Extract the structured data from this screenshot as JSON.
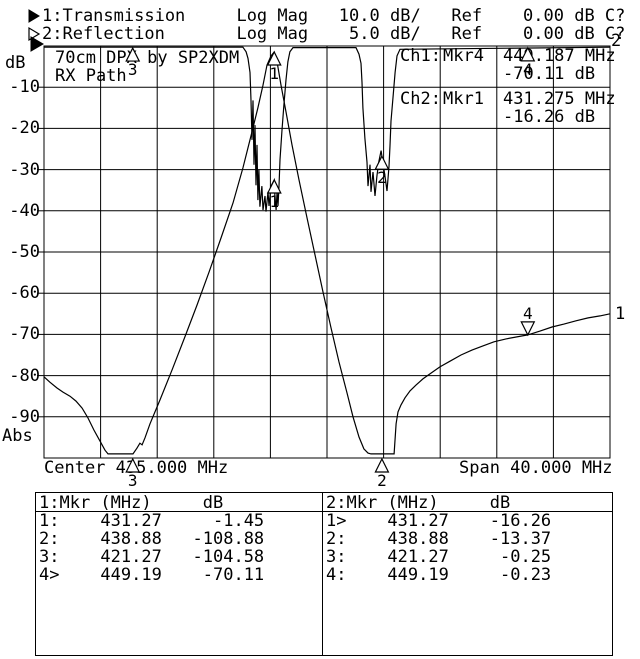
{
  "header": {
    "line1": "1:Transmission     Log Mag   10.0 dB/   Ref    0.00 dB C?",
    "line2": "2:Reflection       Log Mag    5.0 dB/   Ref    0.00 dB C?"
  },
  "y_axis": {
    "unit_label": "dB",
    "bottom_label": "Abs",
    "tick_labels": [
      "-10",
      "-20",
      "-30",
      "-40",
      "-50",
      "-60",
      "-70",
      "-80",
      "-90"
    ]
  },
  "x_axis": {
    "center_label": "Center 435.000 MHz",
    "span_label": "Span 40.000 MHz"
  },
  "annotation": {
    "line1": "70cm DPX by SP2XDM",
    "line2": "RX Path"
  },
  "readout": {
    "ch1_label": "Ch1:",
    "ch1_marker": "Mkr4",
    "ch1_freq": "449.187 MHz",
    "ch1_level": "-70.11 dB",
    "ch2_label": "Ch2:",
    "ch2_marker": "Mkr1",
    "ch2_freq": "431.275 MHz",
    "ch2_level": "-16.26 dB"
  },
  "trace_labels": {
    "trace1": "1",
    "trace2": "2"
  },
  "marker_tables": [
    {
      "header": "1:Mkr (MHz)     dB",
      "rows": [
        "1:    431.27     -1.45",
        "2:    438.88   -108.88",
        "3:    421.27   -104.58",
        "4>    449.19    -70.11"
      ]
    },
    {
      "header": "2:Mkr (MHz)     dB",
      "rows": [
        "1>    431.27    -16.26",
        "2:    438.88    -13.37",
        "3:    421.27     -0.25",
        "4:    449.19     -0.23"
      ]
    }
  ],
  "chart_data": {
    "type": "line",
    "title": "70cm DPX by SP2XDM RX Path",
    "x_range_mhz": [
      415,
      455
    ],
    "center_mhz": 435.0,
    "span_mhz": 40.0,
    "grid_divisions": {
      "x": 10,
      "y": 10
    },
    "y_top_db": 0,
    "colors": {
      "ink": "#000000",
      "paper": "#ffffff"
    },
    "traces": [
      {
        "name": "Transmission",
        "channel": 1,
        "scale_db_per_div": 10,
        "ref_db": 0,
        "points": [
          [
            415.0,
            -80.3
          ],
          [
            415.42,
            -81.6
          ],
          [
            415.92,
            -83.0
          ],
          [
            416.34,
            -84.0
          ],
          [
            416.84,
            -85.0
          ],
          [
            417.26,
            -86.2
          ],
          [
            417.69,
            -87.9
          ],
          [
            418.11,
            -90.3
          ],
          [
            418.53,
            -93.2
          ],
          [
            418.96,
            -95.9
          ],
          [
            419.31,
            -98.1
          ],
          [
            419.52,
            -99.0
          ],
          [
            421.29,
            -99.0
          ],
          [
            421.57,
            -97.6
          ],
          [
            421.78,
            -96.4
          ],
          [
            421.93,
            -96.8
          ],
          [
            422.14,
            -95.1
          ],
          [
            422.49,
            -91.7
          ],
          [
            423.2,
            -85.9
          ],
          [
            424.05,
            -78.6
          ],
          [
            424.96,
            -70.6
          ],
          [
            425.81,
            -62.9
          ],
          [
            426.66,
            -54.9
          ],
          [
            427.51,
            -46.6
          ],
          [
            428.36,
            -38.1
          ],
          [
            429.06,
            -29.6
          ],
          [
            429.63,
            -21.8
          ],
          [
            430.12,
            -15.0
          ],
          [
            430.48,
            -9.5
          ],
          [
            430.76,
            -4.6
          ],
          [
            431.04,
            -2.4
          ],
          [
            431.27,
            -1.45
          ],
          [
            431.47,
            -3.9
          ],
          [
            431.75,
            -9.5
          ],
          [
            432.1,
            -16.0
          ],
          [
            432.53,
            -24.0
          ],
          [
            433.02,
            -32.5
          ],
          [
            433.59,
            -41.7
          ],
          [
            434.15,
            -50.7
          ],
          [
            434.72,
            -59.7
          ],
          [
            435.28,
            -68.4
          ],
          [
            435.85,
            -76.7
          ],
          [
            436.41,
            -84.2
          ],
          [
            436.84,
            -90.0
          ],
          [
            437.26,
            -94.9
          ],
          [
            437.61,
            -97.8
          ],
          [
            437.9,
            -98.8
          ],
          [
            438.11,
            -99.0
          ],
          [
            439.74,
            -99.0
          ],
          [
            439.88,
            -91.7
          ],
          [
            440.02,
            -88.8
          ],
          [
            440.23,
            -87.1
          ],
          [
            440.51,
            -85.4
          ],
          [
            440.87,
            -83.7
          ],
          [
            441.29,
            -82.3
          ],
          [
            441.78,
            -80.8
          ],
          [
            442.35,
            -79.4
          ],
          [
            442.98,
            -77.9
          ],
          [
            443.69,
            -76.5
          ],
          [
            444.47,
            -75.0
          ],
          [
            445.25,
            -73.8
          ],
          [
            446.02,
            -72.8
          ],
          [
            446.8,
            -71.8
          ],
          [
            447.65,
            -71.1
          ],
          [
            449.19,
            -70.11
          ],
          [
            450.05,
            -69.2
          ],
          [
            450.9,
            -68.2
          ],
          [
            451.75,
            -67.5
          ],
          [
            452.6,
            -66.7
          ],
          [
            453.45,
            -66.0
          ],
          [
            454.29,
            -65.5
          ],
          [
            455.0,
            -65.0
          ]
        ]
      },
      {
        "name": "Reflection",
        "channel": 2,
        "scale_db_per_div": 5,
        "ref_db": 0,
        "points": [
          [
            415.0,
            -0.15
          ],
          [
            429.06,
            -0.15
          ],
          [
            429.28,
            -0.7
          ],
          [
            429.42,
            -1.5
          ],
          [
            429.56,
            -3.2
          ],
          [
            429.63,
            -6.6
          ],
          [
            429.7,
            -11.4
          ],
          [
            429.77,
            -6.6
          ],
          [
            429.84,
            -14.4
          ],
          [
            429.91,
            -9.6
          ],
          [
            429.98,
            -16.9
          ],
          [
            430.05,
            -12.0
          ],
          [
            430.12,
            -18.7
          ],
          [
            430.19,
            -15.0
          ],
          [
            430.26,
            -19.5
          ],
          [
            430.4,
            -17.0
          ],
          [
            430.48,
            -19.9
          ],
          [
            430.62,
            -18.2
          ],
          [
            430.69,
            -20.1
          ],
          [
            430.83,
            -17.7
          ],
          [
            430.9,
            -19.4
          ],
          [
            431.04,
            -17.0
          ],
          [
            431.27,
            -16.26
          ],
          [
            431.32,
            -18.2
          ],
          [
            431.4,
            -19.9
          ],
          [
            431.47,
            -17.7
          ],
          [
            431.54,
            -19.4
          ],
          [
            431.61,
            -17.0
          ],
          [
            431.68,
            -13.8
          ],
          [
            431.82,
            -10.2
          ],
          [
            431.96,
            -7.0
          ],
          [
            432.1,
            -4.1
          ],
          [
            432.24,
            -1.9
          ],
          [
            432.38,
            -0.7
          ],
          [
            432.6,
            -0.2
          ],
          [
            437.05,
            -0.2
          ],
          [
            437.26,
            -1.0
          ],
          [
            437.4,
            -2.1
          ],
          [
            437.47,
            -4.4
          ],
          [
            437.54,
            -7.5
          ],
          [
            437.68,
            -11.2
          ],
          [
            437.83,
            -14.1
          ],
          [
            437.9,
            -17.0
          ],
          [
            438.04,
            -14.4
          ],
          [
            438.11,
            -17.7
          ],
          [
            438.25,
            -15.3
          ],
          [
            438.39,
            -18.2
          ],
          [
            438.53,
            -15.8
          ],
          [
            438.67,
            -14.0
          ],
          [
            438.82,
            -12.7
          ],
          [
            438.88,
            -13.37
          ],
          [
            439.1,
            -15.8
          ],
          [
            439.24,
            -17.6
          ],
          [
            439.38,
            -14.6
          ],
          [
            439.45,
            -12.1
          ],
          [
            439.52,
            -9.1
          ],
          [
            439.67,
            -6.1
          ],
          [
            439.81,
            -3.2
          ],
          [
            439.95,
            -1.2
          ],
          [
            440.16,
            -0.4
          ],
          [
            455.0,
            -0.15
          ]
        ]
      }
    ],
    "markers": [
      {
        "trace": 1,
        "label": "1",
        "mhz": 431.27,
        "db": -1.45,
        "orient": "below"
      },
      {
        "trace": 1,
        "label": "2",
        "mhz": 438.88,
        "db": -108.88,
        "orient": "below"
      },
      {
        "trace": 1,
        "label": "3",
        "mhz": 421.27,
        "db": -104.58,
        "orient": "below"
      },
      {
        "trace": 1,
        "label": "4",
        "mhz": 449.19,
        "db": -70.11,
        "orient": "above"
      },
      {
        "trace": 2,
        "label": "1",
        "mhz": 431.275,
        "db": -16.26,
        "orient": "below"
      },
      {
        "trace": 2,
        "label": "2",
        "mhz": 438.88,
        "db": -13.37,
        "orient": "below"
      },
      {
        "trace": 2,
        "label": "3",
        "mhz": 421.27,
        "db": -0.25,
        "orient": "below"
      },
      {
        "trace": 2,
        "label": "4",
        "mhz": 449.19,
        "db": -0.23,
        "orient": "below"
      }
    ]
  }
}
